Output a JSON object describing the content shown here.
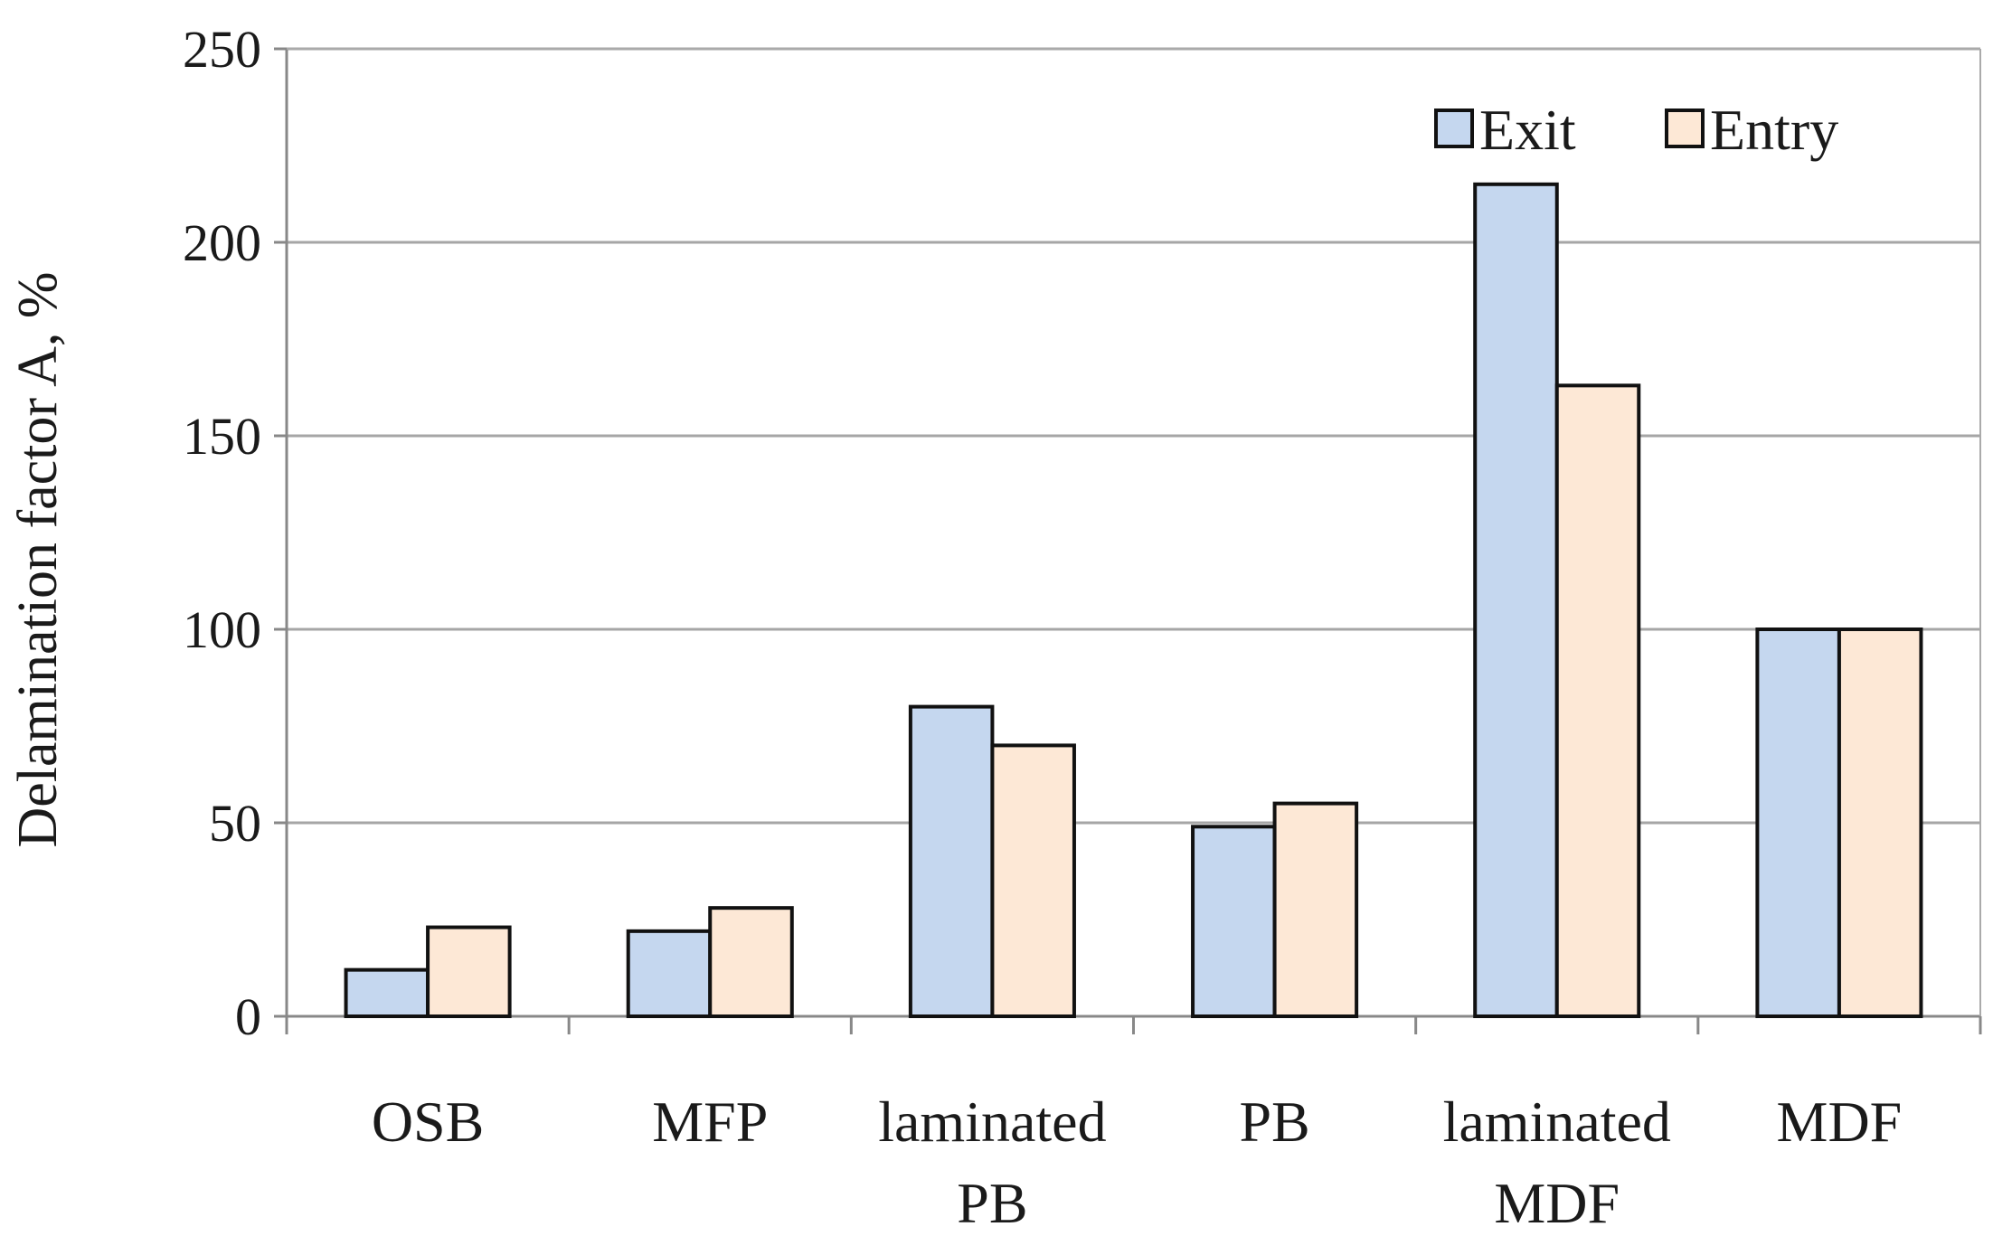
{
  "chart_data": {
    "type": "bar",
    "title": "",
    "xlabel": "",
    "ylabel": "Delamination factor A, %",
    "ylim": [
      0,
      250
    ],
    "yticks": [
      0,
      50,
      100,
      150,
      200,
      250
    ],
    "grid": true,
    "legend_placement": "top-right",
    "categories": [
      [
        "OSB"
      ],
      [
        "MFP"
      ],
      [
        "laminated",
        "PB"
      ],
      [
        "PB"
      ],
      [
        "laminated",
        "MDF"
      ],
      [
        "MDF"
      ]
    ],
    "series": [
      {
        "name": "Exit",
        "color": "#c5d7ef",
        "values": [
          12,
          22,
          80,
          49,
          215,
          100
        ]
      },
      {
        "name": "Entry",
        "color": "#fde8d6",
        "values": [
          23,
          28,
          70,
          55,
          163,
          100
        ]
      }
    ]
  }
}
